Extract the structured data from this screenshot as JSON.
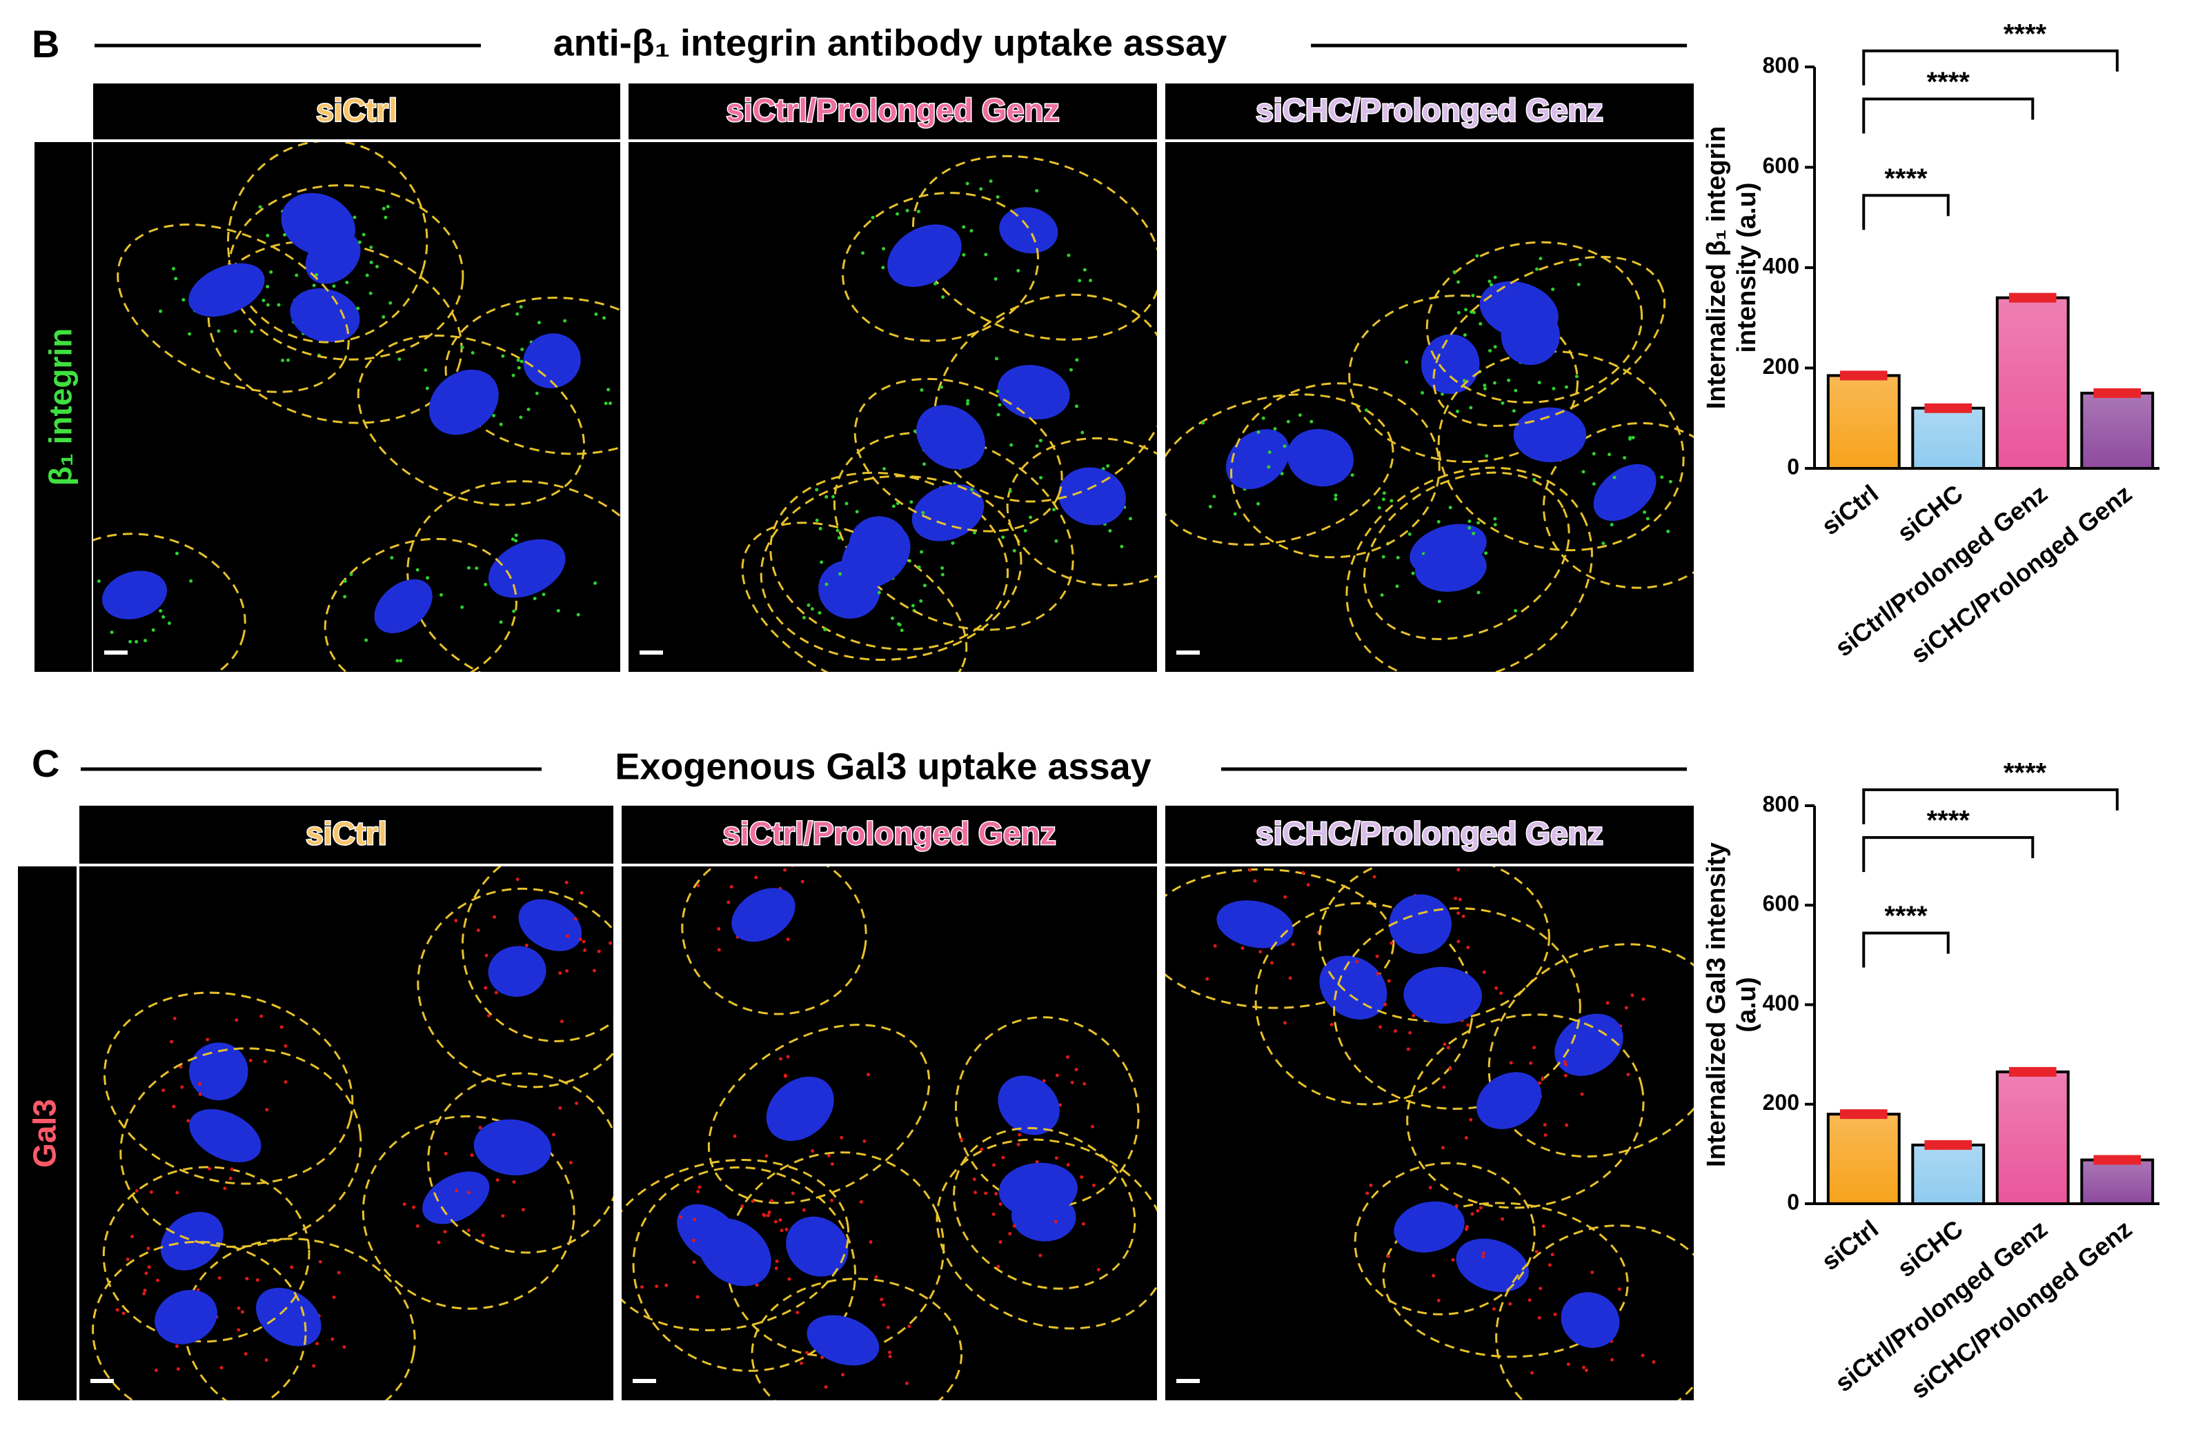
{
  "panels": [
    {
      "letter": "B",
      "title": "anti-β₁ integrin antibody uptake assay",
      "columns": [
        "siCtrl",
        "siCtrl/Prolonged Genz",
        "siCHC/Prolonged Genz"
      ],
      "column_colors": [
        "#f8c46a",
        "#ef6f9f",
        "#d9bde9"
      ],
      "channel": "β₁ integrin",
      "channel_color": "#3fe03f",
      "dot_color": "#2fd02f"
    },
    {
      "letter": "C",
      "title": "Exogenous Gal3 uptake assay",
      "columns": [
        "siCtrl",
        "siCtrl/Prolonged Genz",
        "siCHC/Prolonged Genz"
      ],
      "column_colors": [
        "#f8c46a",
        "#ef6f9f",
        "#d9bde9"
      ],
      "channel": "Gal3",
      "channel_color": "#ff5a6a",
      "dot_color": "#e01818"
    }
  ],
  "chart_data": [
    {
      "type": "bar",
      "y_label": [
        "Internalized β₁ integrin",
        "intensity (a.u)"
      ],
      "categories": [
        "siCtrl",
        "siCHC",
        "siCtrl/Prolonged Genz",
        "siCHC/Prolonged Genz"
      ],
      "values": [
        185,
        120,
        340,
        150
      ],
      "colors": [
        "#f7a21b",
        "#8fcbef",
        "#e9559a",
        "#8e4a9e"
      ],
      "mean_color": "#e8232a",
      "ylim": [
        0,
        800
      ],
      "yticks": [
        0,
        200,
        400,
        600,
        800
      ],
      "annotations": [
        "****",
        "****",
        "****"
      ]
    },
    {
      "type": "bar",
      "y_label": [
        "Internalized Gal3 intensity",
        "(a.u)"
      ],
      "categories": [
        "siCtrl",
        "siCHC",
        "siCtrl/Prolonged Genz",
        "siCHC/Prolonged Genz"
      ],
      "values": [
        180,
        118,
        265,
        88
      ],
      "colors": [
        "#f7a21b",
        "#8fcbef",
        "#e9559a",
        "#8e4a9e"
      ],
      "mean_color": "#e8232a",
      "ylim": [
        0,
        800
      ],
      "yticks": [
        0,
        200,
        400,
        600,
        800
      ],
      "annotations": [
        "****",
        "****",
        "****"
      ]
    }
  ]
}
